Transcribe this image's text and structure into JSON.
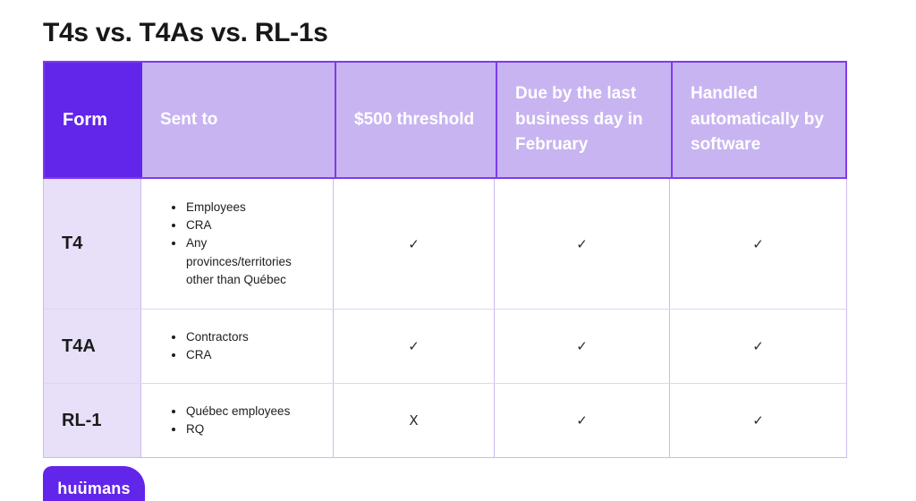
{
  "page": {
    "title": "T4s vs. T4As vs. RL-1s"
  },
  "table": {
    "headers": [
      "Form",
      "Sent to",
      "$500 threshold",
      "Due by the last business day in February",
      "Handled automatically by software"
    ],
    "rows": [
      {
        "form": "T4",
        "sent_to": [
          "Employees",
          "CRA",
          "Any provinces/territories other than Québec"
        ],
        "threshold": "✓",
        "due": "✓",
        "software": "✓"
      },
      {
        "form": "T4A",
        "sent_to": [
          "Contractors",
          "CRA"
        ],
        "threshold": "✓",
        "due": "✓",
        "software": "✓"
      },
      {
        "form": "RL-1",
        "sent_to": [
          "Québec employees",
          "RQ"
        ],
        "threshold": "X",
        "due": "✓",
        "software": "✓"
      }
    ]
  },
  "footer": {
    "logo_prefix": "hu",
    "logo_dotted": "u",
    "logo_suffix": "mans"
  },
  "colors": {
    "brand_purple": "#6225EA",
    "header_light_purple": "#C8B4F1",
    "row_label_lavender": "#E7E0F8",
    "border_dark": "#7E3BED",
    "border_light_vertical": "#CDBAF1",
    "border_light_horizontal": "#DED5F7"
  }
}
